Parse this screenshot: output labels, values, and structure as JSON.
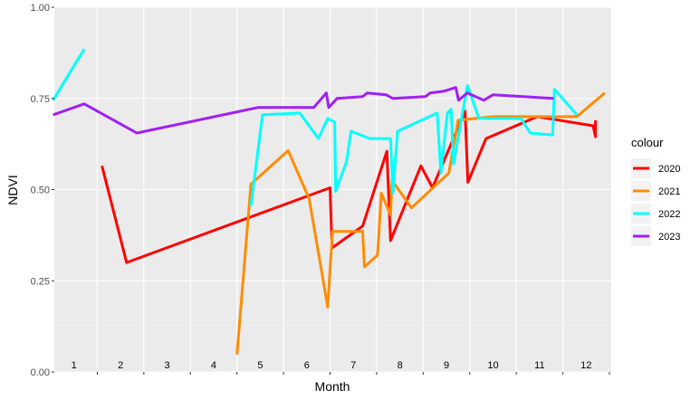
{
  "chart_data": {
    "type": "line",
    "xlabel": "Month",
    "ylabel": "NDVI",
    "ylim": [
      0,
      1
    ],
    "y_ticks": [
      "0.00",
      "0.25",
      "0.50",
      "0.75",
      "1.00"
    ],
    "y_tick_values": [
      0,
      0.25,
      0.5,
      0.75,
      1.0
    ],
    "month_labels": [
      "1",
      "2",
      "3",
      "4",
      "5",
      "6",
      "7",
      "8",
      "9",
      "10",
      "11",
      "12"
    ],
    "legend_title": "colour",
    "legend_position": "right",
    "grid": true,
    "series": [
      {
        "name": "2020",
        "color": "#ff0000",
        "points": [
          [
            1.1,
            0.565
          ],
          [
            1.63,
            0.3
          ],
          [
            6.0,
            0.505
          ],
          [
            6.04,
            0.34
          ],
          [
            6.7,
            0.4
          ],
          [
            7.22,
            0.605
          ],
          [
            7.3,
            0.36
          ],
          [
            7.95,
            0.565
          ],
          [
            8.2,
            0.505
          ],
          [
            8.55,
            0.61
          ],
          [
            8.9,
            0.715
          ],
          [
            8.96,
            0.52
          ],
          [
            9.35,
            0.64
          ],
          [
            10.45,
            0.7
          ],
          [
            11.65,
            0.675
          ],
          [
            11.7,
            0.645
          ],
          [
            11.7,
            0.69
          ]
        ]
      },
      {
        "name": "2021",
        "color": "#ff8c00",
        "points": [
          [
            4.0,
            0.048
          ],
          [
            4.3,
            0.515
          ],
          [
            5.1,
            0.607
          ],
          [
            5.55,
            0.475
          ],
          [
            5.95,
            0.178
          ],
          [
            6.05,
            0.385
          ],
          [
            6.7,
            0.385
          ],
          [
            6.74,
            0.288
          ],
          [
            7.02,
            0.32
          ],
          [
            7.1,
            0.49
          ],
          [
            7.3,
            0.43
          ],
          [
            7.33,
            0.525
          ],
          [
            7.75,
            0.45
          ],
          [
            8.25,
            0.51
          ],
          [
            8.55,
            0.545
          ],
          [
            8.75,
            0.69
          ],
          [
            9.5,
            0.7
          ],
          [
            11.3,
            0.7
          ],
          [
            11.9,
            0.765
          ]
        ]
      },
      {
        "name": "2022",
        "color": "#00ffff",
        "points": [
          [
            0.05,
            0.745
          ],
          [
            0.72,
            0.885
          ],
          null,
          [
            4.3,
            0.455
          ],
          [
            4.55,
            0.705
          ],
          [
            5.35,
            0.71
          ],
          [
            5.75,
            0.64
          ],
          [
            5.95,
            0.695
          ],
          [
            6.1,
            0.685
          ],
          [
            6.12,
            0.495
          ],
          [
            6.35,
            0.575
          ],
          [
            6.45,
            0.66
          ],
          [
            6.85,
            0.64
          ],
          [
            7.3,
            0.64
          ],
          [
            7.35,
            0.49
          ],
          [
            7.45,
            0.66
          ],
          [
            8.3,
            0.71
          ],
          [
            8.38,
            0.545
          ],
          [
            8.52,
            0.71
          ],
          [
            8.6,
            0.72
          ],
          [
            8.65,
            0.57
          ],
          [
            8.95,
            0.785
          ],
          [
            9.2,
            0.695
          ],
          [
            10.1,
            0.695
          ],
          [
            10.3,
            0.655
          ],
          [
            10.78,
            0.65
          ],
          [
            10.82,
            0.775
          ],
          [
            11.3,
            0.705
          ]
        ]
      },
      {
        "name": "2023",
        "color": "#a020f0",
        "points": [
          [
            0.05,
            0.705
          ],
          [
            0.72,
            0.735
          ],
          [
            1.85,
            0.655
          ],
          [
            4.45,
            0.725
          ],
          [
            5.65,
            0.725
          ],
          [
            5.92,
            0.765
          ],
          [
            5.97,
            0.725
          ],
          [
            6.15,
            0.75
          ],
          [
            6.7,
            0.755
          ],
          [
            6.8,
            0.765
          ],
          [
            7.2,
            0.76
          ],
          [
            7.35,
            0.75
          ],
          [
            8.05,
            0.755
          ],
          [
            8.15,
            0.765
          ],
          [
            8.45,
            0.77
          ],
          [
            8.7,
            0.78
          ],
          [
            8.76,
            0.745
          ],
          [
            8.95,
            0.765
          ],
          [
            9.3,
            0.745
          ],
          [
            9.5,
            0.76
          ],
          [
            10.8,
            0.75
          ]
        ]
      }
    ]
  }
}
